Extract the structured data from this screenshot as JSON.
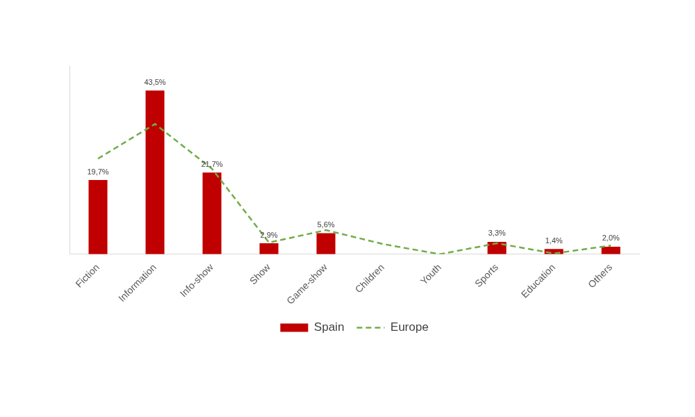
{
  "chart_data": {
    "type": "bar",
    "categories": [
      "Fiction",
      "Information",
      "Info-show",
      "Show",
      "Game-show",
      "Children",
      "Youth",
      "Sports",
      "Education",
      "Others"
    ],
    "series": [
      {
        "name": "Spain",
        "type": "bar",
        "color": "#c00000",
        "values": [
          19.7,
          43.5,
          21.7,
          2.9,
          5.6,
          null,
          null,
          3.3,
          1.4,
          2.0
        ],
        "value_labels": [
          "19,7%",
          "43,5%",
          "21,7%",
          "2,9%",
          "5,6%",
          null,
          null,
          "3,3%",
          "1,4%",
          "2,0%"
        ],
        "data_labels": true
      },
      {
        "name": "Europe",
        "type": "line",
        "color": "#70ad47",
        "line_style": "dashed",
        "values": [
          25.4,
          34.6,
          22.7,
          3.1,
          6.4,
          2.7,
          0.0,
          2.9,
          0.2,
          2.3
        ]
      }
    ],
    "ylim": [
      0,
      50
    ],
    "yticks": [],
    "tick_labels": "x",
    "grid": false,
    "legend": "bottom"
  }
}
